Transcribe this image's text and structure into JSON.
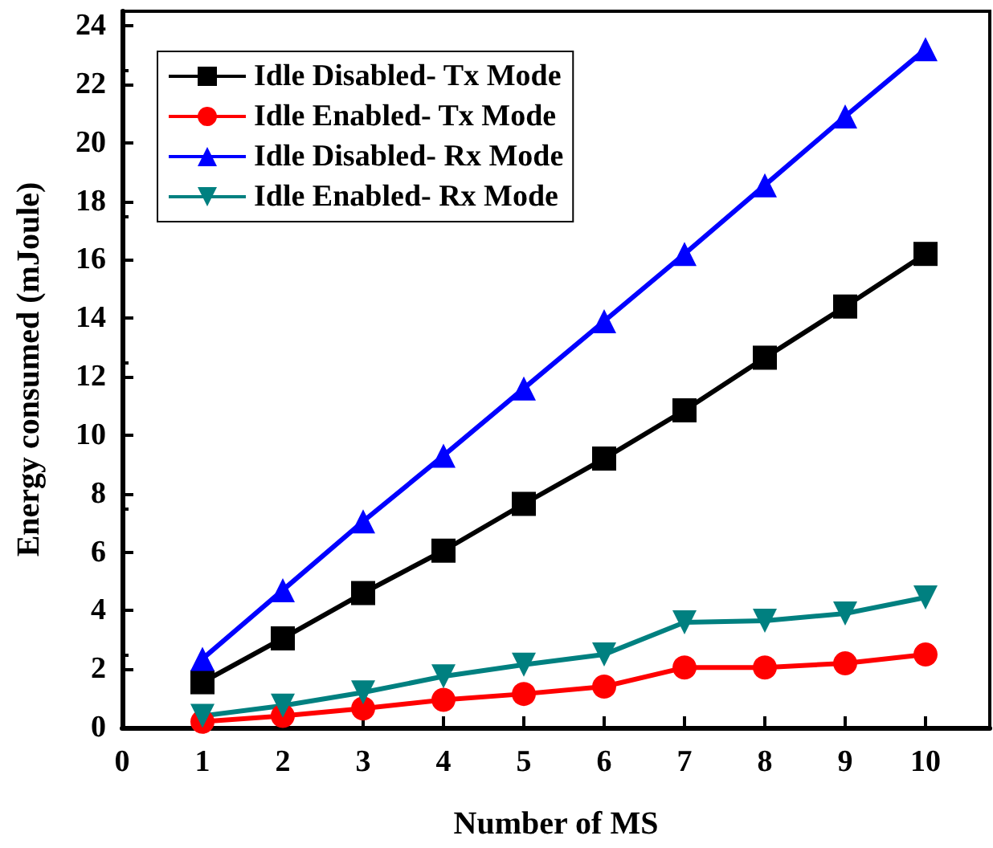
{
  "chart_data": {
    "type": "line",
    "xlabel": "Number of MS",
    "ylabel": "Energy consumed (mJoule)",
    "x": [
      1,
      2,
      3,
      4,
      5,
      6,
      7,
      8,
      9,
      10
    ],
    "series": [
      {
        "name": "Idle Disabled- Tx Mode",
        "color": "#000000",
        "marker": "square",
        "values": [
          1.55,
          3.05,
          4.6,
          6.05,
          7.65,
          9.2,
          10.85,
          12.65,
          14.4,
          16.2
        ]
      },
      {
        "name": "Idle Enabled- Tx Mode",
        "color": "#ff0000",
        "marker": "circle",
        "values": [
          0.2,
          0.4,
          0.65,
          0.95,
          1.15,
          1.4,
          2.05,
          2.05,
          2.2,
          2.5
        ]
      },
      {
        "name": "Idle Disabled- Rx Mode",
        "color": "#0000ff",
        "marker": "triangle",
        "values": [
          2.35,
          4.7,
          7.05,
          9.3,
          11.6,
          13.9,
          16.2,
          18.55,
          20.9,
          23.2
        ]
      },
      {
        "name": "Idle Enabled- Rx Mode",
        "color": "#008080",
        "marker": "triangle-down",
        "values": [
          0.4,
          0.75,
          1.2,
          1.75,
          2.15,
          2.5,
          3.6,
          3.65,
          3.9,
          4.45
        ]
      }
    ],
    "xlim": [
      0,
      10.8
    ],
    "xticks": [
      0,
      1,
      2,
      3,
      4,
      5,
      6,
      7,
      8,
      9,
      10
    ],
    "ylim": [
      0,
      24.5
    ],
    "yticks": [
      0,
      2,
      4,
      6,
      8,
      10,
      12,
      14,
      16,
      18,
      20,
      22,
      24
    ],
    "grid": false,
    "legend": "top left",
    "line_style": "solid"
  }
}
